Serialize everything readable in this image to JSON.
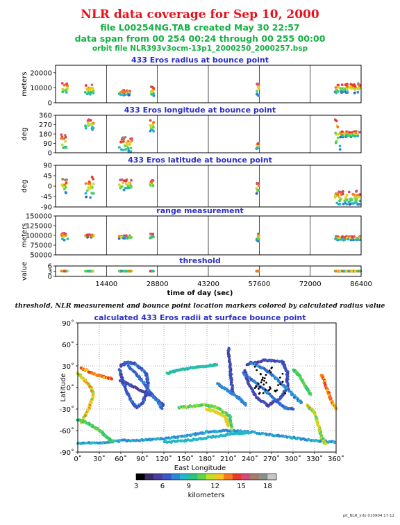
{
  "header": {
    "title": "NLR data coverage for Sep 10, 2000",
    "file_line": "file L00254NG.TAB created May 30 22:57",
    "span_line": "data span from 00 254 00:24 through 00 255 00:00",
    "orbit_line": "orbit file NLR393v3ocm-13p1_2000250_2000257.bsp"
  },
  "caption": "threshold, NLR measurement and bounce point location markers colored by calculated radius value",
  "footer": "plt_NLR_info 010904 17:12",
  "colors": {
    "title": "#e8111b",
    "subtitle": "#16b043",
    "panel_title": "#2b2fc4",
    "colormap": [
      "#000000",
      "#3b2a66",
      "#4a3d99",
      "#3a56c8",
      "#2f86d6",
      "#22b8c8",
      "#2fc27a",
      "#5ed64a",
      "#c4de2a",
      "#f7c51c",
      "#f57a1a",
      "#e83b2a",
      "#d74a7a",
      "#a57b6a",
      "#8e8e8e",
      "#c8c8c8"
    ]
  },
  "chart_data": [
    {
      "type": "scatter",
      "title": "433 Eros radius at bounce point",
      "ylabel": "meters",
      "ylim": [
        0,
        25000
      ],
      "yticks": [
        0,
        10000,
        20000
      ],
      "xlim": [
        0,
        86400
      ],
      "xticks": [
        14400,
        28800,
        43200,
        57600,
        72000,
        86400
      ],
      "segments": [
        {
          "t0": 1600,
          "t1": 3400,
          "vmin": 5500,
          "vmax": 14000,
          "r": 8
        },
        {
          "t0": 8400,
          "t1": 10800,
          "vmin": 5000,
          "vmax": 12000,
          "r": 6
        },
        {
          "t0": 18000,
          "t1": 21600,
          "vmin": 5000,
          "vmax": 8500,
          "r": 6
        },
        {
          "t0": 26700,
          "t1": 27800,
          "vmin": 4500,
          "vmax": 11000,
          "r": 5
        },
        {
          "t0": 56800,
          "t1": 57500,
          "vmin": 4500,
          "vmax": 14000,
          "r": 9
        },
        {
          "t0": 79000,
          "t1": 86200,
          "vmin": 6500,
          "vmax": 13000,
          "r": 10
        }
      ]
    },
    {
      "type": "scatter",
      "title": "433 Eros longitude at bounce point",
      "ylabel": "deg",
      "ylim": [
        0,
        360
      ],
      "yticks": [
        0,
        90,
        180,
        270,
        360
      ],
      "xlim": [
        0,
        86400
      ],
      "segments": [
        {
          "t0": 1600,
          "t1": 3200,
          "vmin": 10,
          "vmax": 180,
          "r": 10
        },
        {
          "t0": 8400,
          "t1": 10800,
          "vmin": 220,
          "vmax": 330,
          "r": 6
        },
        {
          "t0": 18000,
          "t1": 21600,
          "vmin": 10,
          "vmax": 150,
          "r": 5
        },
        {
          "t0": 26700,
          "t1": 27800,
          "vmin": 200,
          "vmax": 320,
          "r": 6
        },
        {
          "t0": 56800,
          "t1": 57400,
          "vmin": 40,
          "vmax": 100,
          "r": 3
        },
        {
          "t0": 79000,
          "t1": 80600,
          "vmin": 5,
          "vmax": 360,
          "r": 14
        },
        {
          "t0": 80600,
          "t1": 86300,
          "vmin": 150,
          "vmax": 210,
          "r": 12
        }
      ]
    },
    {
      "type": "scatter",
      "title": "433 Eros latitude at bounce point",
      "ylabel": "deg",
      "ylim": [
        -90,
        90
      ],
      "yticks": [
        -90,
        -45,
        0,
        45,
        90
      ],
      "xlim": [
        0,
        86400
      ],
      "segments": [
        {
          "t0": 1600,
          "t1": 3200,
          "vmin": -30,
          "vmax": 30,
          "r": 10
        },
        {
          "t0": 8400,
          "t1": 10800,
          "vmin": -50,
          "vmax": 45,
          "r": 9
        },
        {
          "t0": 18000,
          "t1": 21600,
          "vmin": -20,
          "vmax": 30,
          "r": 8
        },
        {
          "t0": 26700,
          "t1": 27800,
          "vmin": -15,
          "vmax": 30,
          "r": 6
        },
        {
          "t0": 56800,
          "t1": 57500,
          "vmin": -35,
          "vmax": 15,
          "r": 5
        },
        {
          "t0": 79000,
          "t1": 86300,
          "vmin": -80,
          "vmax": -20,
          "r": 14
        }
      ]
    },
    {
      "type": "scatter",
      "title": "range measurement",
      "ylabel": "meters",
      "ylim": [
        50000,
        150000
      ],
      "yticks": [
        50000,
        75000,
        100000,
        125000,
        150000
      ],
      "xlim": [
        0,
        86400
      ],
      "segments": [
        {
          "t0": 1600,
          "t1": 3400,
          "vmin": 88000,
          "vmax": 106000,
          "r": 8
        },
        {
          "t0": 8400,
          "t1": 10800,
          "vmin": 95000,
          "vmax": 102000,
          "r": 6
        },
        {
          "t0": 18000,
          "t1": 21600,
          "vmin": 92000,
          "vmax": 100000,
          "r": 6
        },
        {
          "t0": 26700,
          "t1": 27800,
          "vmin": 92000,
          "vmax": 105000,
          "r": 5
        },
        {
          "t0": 56800,
          "t1": 57500,
          "vmin": 85000,
          "vmax": 105000,
          "r": 9
        },
        {
          "t0": 79000,
          "t1": 86300,
          "vmin": 88000,
          "vmax": 98000,
          "r": 10
        }
      ]
    },
    {
      "type": "scatter",
      "title": "threshold",
      "ylabel": "value",
      "xlabel": "time of day (sec)",
      "ylim": [
        0,
        6
      ],
      "yticks": [
        0,
        3,
        6
      ],
      "xlim": [
        0,
        86400
      ],
      "xticks": [
        14400,
        28800,
        43200,
        57600,
        72000,
        86400
      ],
      "segments": [
        {
          "t0": 1600,
          "t1": 3400,
          "vmin": 3,
          "vmax": 3,
          "r": 0
        },
        {
          "t0": 8400,
          "t1": 10800,
          "vmin": 3,
          "vmax": 3,
          "r": 0
        },
        {
          "t0": 18000,
          "t1": 21600,
          "vmin": 3,
          "vmax": 3,
          "r": 0
        },
        {
          "t0": 26700,
          "t1": 27800,
          "vmin": 3,
          "vmax": 3,
          "r": 0
        },
        {
          "t0": 56800,
          "t1": 57500,
          "vmin": 3,
          "vmax": 3,
          "r": 0
        },
        {
          "t0": 79000,
          "t1": 86300,
          "vmin": 3,
          "vmax": 3,
          "r": 0
        }
      ]
    },
    {
      "type": "scatter",
      "title": "calculated 433 Eros radii at surface bounce point",
      "xlabel": "East Longitude",
      "ylabel": "Latitude",
      "xlim": [
        0,
        360
      ],
      "ylim": [
        -90,
        90
      ],
      "xticks": [
        0,
        30,
        60,
        90,
        120,
        150,
        180,
        210,
        240,
        270,
        300,
        330,
        360
      ],
      "xtick_labels": [
        "0˚",
        "30˚",
        "60˚",
        "90˚",
        "120˚",
        "150˚",
        "180˚",
        "210˚",
        "240˚",
        "270˚",
        "300˚",
        "330˚",
        "360˚"
      ],
      "yticks": [
        -90,
        -60,
        -30,
        0,
        30,
        60,
        90
      ],
      "ytick_labels": [
        "-90˚",
        "-60˚",
        "-30˚",
        "0˚",
        "30˚",
        "60˚",
        "90˚"
      ],
      "tracks": [
        {
          "points": [
            [
              60,
              30
            ],
            [
              68,
              35
            ],
            [
              80,
              33
            ],
            [
              95,
              20
            ],
            [
              98,
              5
            ],
            [
              95,
              -10
            ],
            [
              90,
              -22
            ],
            [
              82,
              -28
            ],
            [
              75,
              -20
            ],
            [
              68,
              -5
            ],
            [
              62,
              10
            ],
            [
              58,
              25
            ]
          ],
          "c": [
            2,
            4
          ]
        },
        {
          "points": [
            [
              58,
              10
            ],
            [
              70,
              5
            ],
            [
              90,
              -5
            ],
            [
              108,
              -15
            ],
            [
              120,
              -25
            ]
          ],
          "c": [
            2,
            3
          ]
        },
        {
          "points": [
            [
              70,
              30
            ],
            [
              85,
              15
            ],
            [
              100,
              -5
            ],
            [
              112,
              -20
            ],
            [
              118,
              -30
            ]
          ],
          "c": [
            3,
            4
          ]
        },
        {
          "points": [
            [
              235,
              32
            ],
            [
              260,
              38
            ],
            [
              285,
              36
            ],
            [
              292,
              22
            ],
            [
              292,
              0
            ],
            [
              282,
              -15
            ],
            [
              265,
              -25
            ],
            [
              250,
              -15
            ],
            [
              238,
              5
            ],
            [
              232,
              25
            ]
          ],
          "c": [
            2,
            3
          ]
        },
        {
          "points": [
            [
              230,
              20
            ],
            [
              250,
              5
            ],
            [
              270,
              -12
            ],
            [
              288,
              -28
            ],
            [
              300,
              -30
            ]
          ],
          "c": [
            3,
            4
          ]
        },
        {
          "points": [
            [
              240,
              35
            ],
            [
              262,
              25
            ],
            [
              282,
              8
            ],
            [
              300,
              -10
            ],
            [
              312,
              -22
            ]
          ],
          "c": [
            3,
            5
          ]
        },
        {
          "points": [
            [
              0,
              -78
            ],
            [
              30,
              -77
            ],
            [
              60,
              -74
            ],
            [
              90,
              -73
            ],
            [
              120,
              -71
            ],
            [
              150,
              -68
            ],
            [
              180,
              -62
            ],
            [
              210,
              -60
            ],
            [
              240,
              -62
            ],
            [
              270,
              -66
            ],
            [
              300,
              -70
            ],
            [
              330,
              -74
            ],
            [
              360,
              -76
            ]
          ],
          "c": [
            4,
            5
          ]
        },
        {
          "points": [
            [
              120,
              -76
            ],
            [
              150,
              -74
            ],
            [
              180,
              -70
            ],
            [
              205,
              -66
            ],
            [
              225,
              -64
            ],
            [
              240,
              -63
            ]
          ],
          "c": [
            5,
            5
          ]
        },
        {
          "points": [
            [
              0,
              20
            ],
            [
              10,
              10
            ],
            [
              18,
              0
            ],
            [
              22,
              -10
            ],
            [
              15,
              -30
            ],
            [
              5,
              -50
            ]
          ],
          "c": [
            7,
            10
          ]
        },
        {
          "points": [
            [
              4,
              28
            ],
            [
              20,
              20
            ],
            [
              35,
              15
            ],
            [
              48,
              12
            ]
          ],
          "c": [
            9,
            11
          ]
        },
        {
          "points": [
            [
              0,
              -45
            ],
            [
              15,
              -50
            ],
            [
              30,
              -60
            ],
            [
              40,
              -68
            ],
            [
              48,
              -76
            ]
          ],
          "c": [
            6,
            7
          ]
        },
        {
          "points": [
            [
              140,
              -28
            ],
            [
              160,
              -26
            ],
            [
              178,
              -24
            ],
            [
              195,
              -28
            ],
            [
              212,
              -40
            ],
            [
              215,
              -60
            ]
          ],
          "c": [
            6,
            8
          ]
        },
        {
          "points": [
            [
              180,
              -30
            ],
            [
              195,
              -35
            ],
            [
              205,
              -40
            ],
            [
              210,
              -55
            ]
          ],
          "c": [
            8,
            9
          ]
        },
        {
          "points": [
            [
              320,
              -25
            ],
            [
              330,
              -35
            ],
            [
              336,
              -55
            ],
            [
              340,
              -70
            ],
            [
              346,
              -80
            ]
          ],
          "c": [
            6,
            9
          ]
        },
        {
          "points": [
            [
              340,
              18
            ],
            [
              345,
              5
            ],
            [
              350,
              -10
            ],
            [
              355,
              -22
            ],
            [
              360,
              -30
            ]
          ],
          "c": [
            9,
            11
          ]
        },
        {
          "points": [
            [
              300,
              25
            ],
            [
              310,
              15
            ],
            [
              318,
              0
            ],
            [
              325,
              -10
            ]
          ],
          "c": [
            6,
            7
          ]
        },
        {
          "points": [
            [
              210,
              55
            ],
            [
              212,
              30
            ],
            [
              214,
              10
            ],
            [
              216,
              -10
            ]
          ],
          "c": [
            2,
            3
          ]
        },
        {
          "points": [
            [
              125,
              20
            ],
            [
              140,
              24
            ],
            [
              160,
              28
            ],
            [
              180,
              30
            ],
            [
              195,
              32
            ]
          ],
          "c": [
            5,
            6
          ]
        },
        {
          "points": [
            [
              195,
              5
            ],
            [
              210,
              -5
            ],
            [
              225,
              -15
            ],
            [
              235,
              -25
            ]
          ],
          "c": [
            4,
            4
          ]
        }
      ]
    }
  ],
  "colorbar": {
    "ticks": [
      "3",
      "6",
      "9",
      "12",
      "15",
      "18"
    ],
    "label": "kilometers",
    "min": 3,
    "max": 19
  }
}
